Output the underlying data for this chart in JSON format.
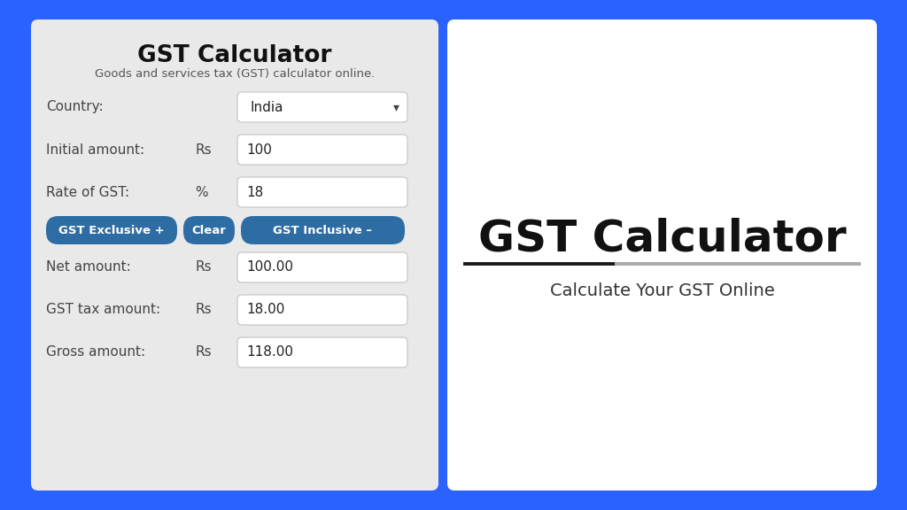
{
  "bg_color": "#2962FF",
  "left_panel_bg": "#e9e9e9",
  "right_panel_bg": "#ffffff",
  "title": "GST Calculator",
  "subtitle": "Goods and services tax (GST) calculator online.",
  "right_title": "GST Calculator",
  "right_subtitle": "Calculate Your GST Online",
  "fields": [
    {
      "label": "Country:",
      "unit": "",
      "value": "India",
      "dropdown": true
    },
    {
      "label": "Initial amount:",
      "unit": "Rs",
      "value": "100",
      "dropdown": false
    },
    {
      "label": "Rate of GST:",
      "unit": "%",
      "value": "18",
      "dropdown": false
    }
  ],
  "buttons": [
    {
      "text": "GST Exclusive +",
      "color": "#2e6da4"
    },
    {
      "text": "Clear",
      "color": "#2e6da4"
    },
    {
      "text": "GST Inclusive –",
      "color": "#2e6da4"
    }
  ],
  "results": [
    {
      "label": "Net amount:",
      "unit": "Rs",
      "value": "100.00"
    },
    {
      "label": "GST tax amount:",
      "unit": "Rs",
      "value": "18.00"
    },
    {
      "label": "Gross amount:",
      "unit": "Rs",
      "value": "118.00"
    }
  ],
  "label_color": "#444444",
  "button_text_color": "#ffffff"
}
